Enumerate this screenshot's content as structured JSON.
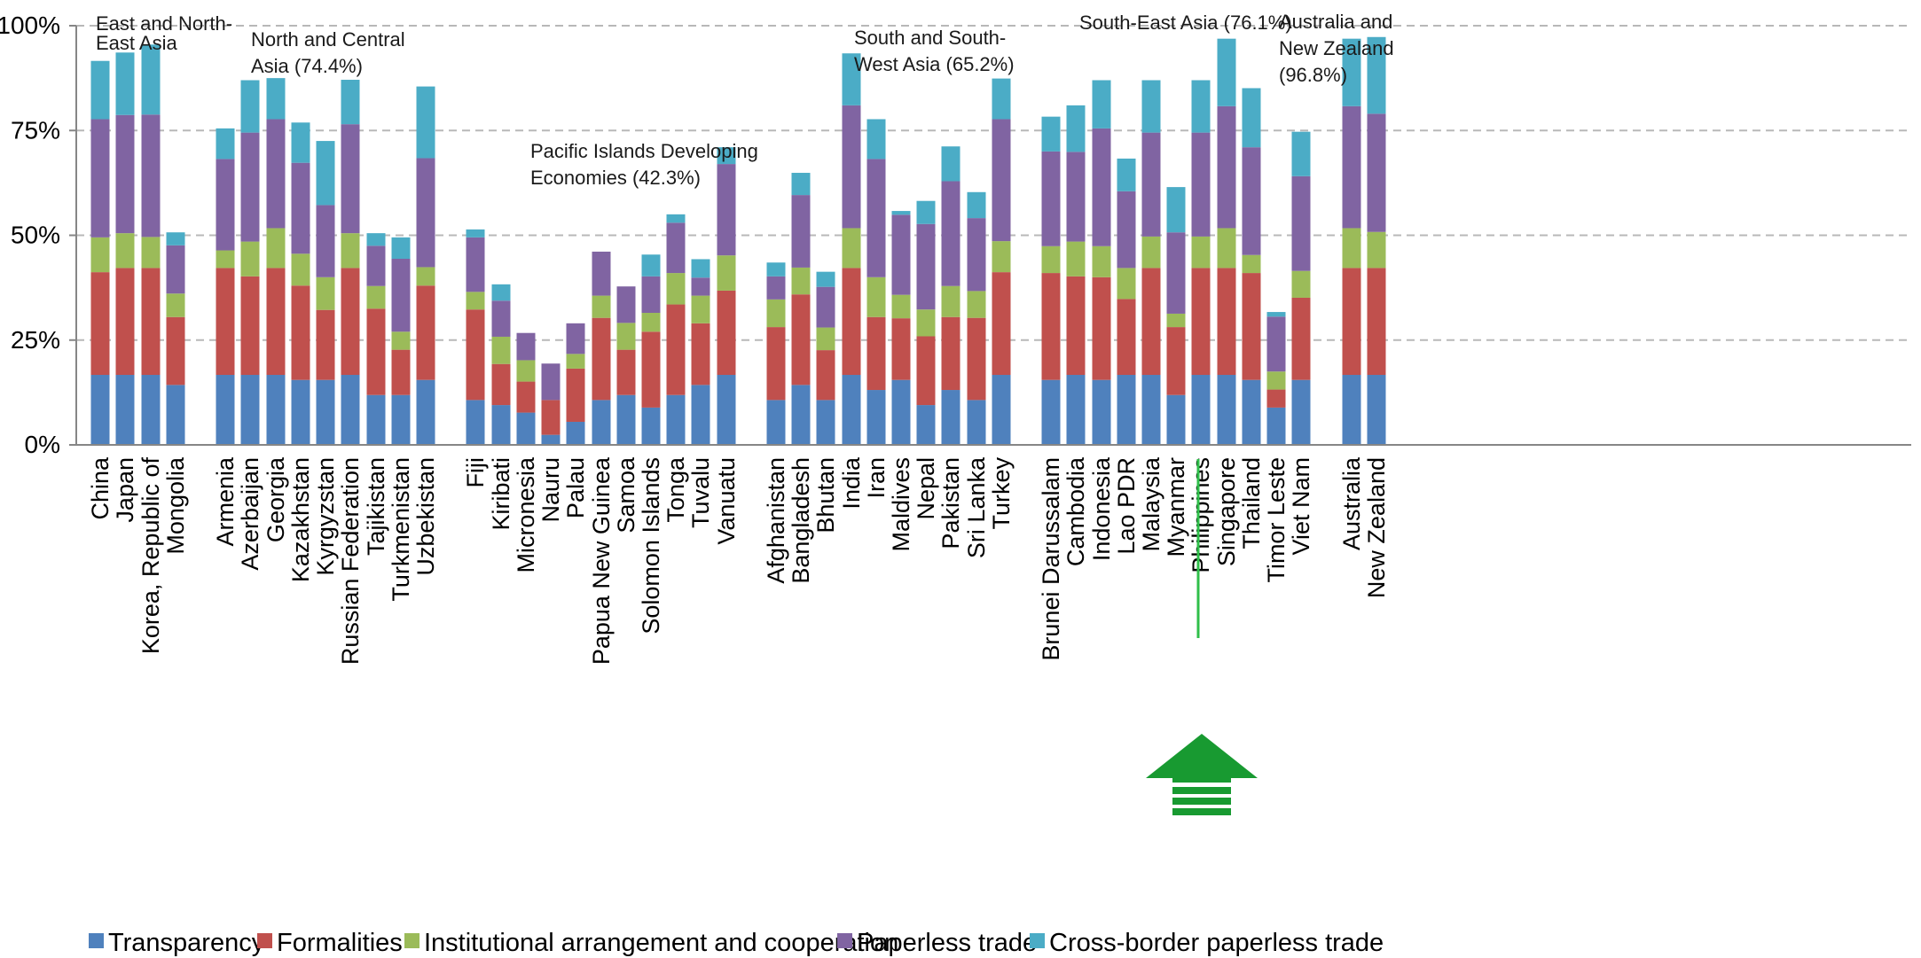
{
  "chart_data": {
    "type": "bar",
    "stacked": true,
    "ylim": [
      0,
      100
    ],
    "y_ticks": [
      "0%",
      "25%",
      "50%",
      "75%",
      "100%"
    ],
    "y_tick_values": [
      0,
      25,
      50,
      75,
      100
    ],
    "grid": "horizontal dashed",
    "legend_position": "bottom",
    "categories": [
      "China",
      "Japan",
      "Korea, Republic of",
      "Mongolia",
      "Armenia",
      "Azerbaijan",
      "Georgia",
      "Kazakhstan",
      "Kyrgyzstan",
      "Russian Federation",
      "Tajikistan",
      "Turkmenistan",
      "Uzbekistan",
      "Fiji",
      "Kiribati",
      "Micronesia",
      "Nauru",
      "Palau",
      "Papua New Guinea",
      "Samoa",
      "Solomon Islands",
      "Tonga",
      "Tuvalu",
      "Vanuatu",
      "Afghanistan",
      "Bangladesh",
      "Bhutan",
      "India",
      "Iran",
      "Maldives",
      "Nepal",
      "Pakistan",
      "Sri Lanka",
      "Turkey",
      "Brunei Darussalam",
      "Cambodia",
      "Indonesia",
      "Lao PDR",
      "Malaysia",
      "Myanmar",
      "Philippines",
      "Singapore",
      "Thailand",
      "Timor Leste",
      "Viet Nam",
      "Australia",
      "New Zealand"
    ],
    "groups": [
      {
        "label": "East and North-East Asia",
        "start": 0,
        "end": 3
      },
      {
        "label": "North and Central Asia (74.4%)",
        "start": 4,
        "end": 12
      },
      {
        "label": "Pacific Islands Developing Economies (42.3%)",
        "start": 13,
        "end": 23
      },
      {
        "label": "South and South-West Asia (65.2%)",
        "start": 24,
        "end": 33
      },
      {
        "label": "South-East Asia (76.1%)",
        "start": 34,
        "end": 44
      },
      {
        "label": "Australia and New Zealand (96.8%)",
        "start": 45,
        "end": 46
      }
    ],
    "series": [
      {
        "name": "Transparency",
        "color": "#4f81bd",
        "values": [
          16.7,
          16.7,
          16.7,
          14.3,
          16.7,
          16.7,
          16.7,
          15.5,
          15.5,
          16.7,
          11.9,
          11.9,
          15.5,
          10.7,
          9.5,
          7.7,
          2.4,
          5.5,
          10.7,
          11.9,
          8.9,
          11.9,
          14.3,
          16.7,
          10.7,
          14.3,
          10.7,
          16.7,
          13.1,
          15.5,
          9.5,
          13.1,
          10.7,
          16.7,
          15.5,
          16.7,
          15.5,
          16.7,
          16.7,
          11.9,
          16.7,
          16.7,
          15.5,
          8.9,
          15.5,
          16.7,
          16.7
        ]
      },
      {
        "name": "Formalities",
        "color": "#c0504d",
        "values": [
          24.5,
          25.5,
          25.5,
          16.2,
          25.5,
          23.5,
          25.5,
          22.5,
          16.7,
          25.5,
          20.6,
          10.8,
          22.5,
          21.6,
          9.8,
          7.4,
          8.3,
          12.7,
          19.6,
          10.8,
          18.1,
          21.6,
          14.7,
          20.1,
          17.4,
          21.6,
          11.9,
          25.5,
          17.4,
          14.7,
          16.4,
          17.4,
          19.6,
          24.5,
          25.5,
          23.5,
          24.5,
          18.1,
          25.5,
          16.2,
          25.5,
          25.5,
          25.5,
          4.3,
          19.6,
          25.5,
          25.5
        ]
      },
      {
        "name": "Institutional arrangement and cooperation",
        "color": "#9bbb59",
        "values": [
          8.3,
          8.3,
          7.4,
          5.6,
          4.2,
          8.3,
          9.5,
          7.6,
          7.8,
          8.3,
          5.4,
          4.3,
          4.4,
          4.2,
          6.5,
          5.1,
          0,
          3.5,
          5.3,
          6.4,
          4.5,
          7.5,
          6.6,
          8.4,
          6.6,
          6.4,
          5.4,
          9.5,
          9.5,
          5.6,
          6.4,
          7.4,
          6.4,
          7.4,
          6.4,
          8.3,
          7.4,
          7.4,
          7.5,
          3.2,
          7.5,
          9.5,
          4.3,
          4.3,
          6.4,
          9.5,
          8.6
        ]
      },
      {
        "name": "Paperless trade",
        "color": "#8064a2",
        "values": [
          28.2,
          28.2,
          29.2,
          11.5,
          21.8,
          26.0,
          26.0,
          21.7,
          17.2,
          26.0,
          9.6,
          17.4,
          26.0,
          13.0,
          8.6,
          6.5,
          8.7,
          7.3,
          10.5,
          8.7,
          8.7,
          12.0,
          4.3,
          21.8,
          5.5,
          17.3,
          9.7,
          29.3,
          28.2,
          19.1,
          20.4,
          25.0,
          17.4,
          29.1,
          22.6,
          21.4,
          28.1,
          18.3,
          24.8,
          19.4,
          24.8,
          29.1,
          25.7,
          13.1,
          22.6,
          29.1,
          28.2
        ]
      },
      {
        "name": "Cross-border paperless trade",
        "color": "#4bacc6",
        "values": [
          13.9,
          14.9,
          16.7,
          3.1,
          7.3,
          12.5,
          9.8,
          9.6,
          15.3,
          10.6,
          3.0,
          5.1,
          17.1,
          1.9,
          3.9,
          0,
          0,
          0,
          0,
          0,
          5.2,
          2.0,
          4.4,
          4.0,
          3.3,
          5.3,
          3.6,
          12.4,
          9.5,
          0.9,
          5.5,
          8.3,
          6.2,
          9.7,
          8.3,
          11.1,
          11.5,
          7.8,
          12.5,
          10.8,
          12.5,
          16.1,
          14.1,
          1.1,
          10.6,
          16.1,
          18.3
        ]
      }
    ]
  },
  "highlight": {
    "category": "Philippines",
    "marker": "green-up-arrow",
    "color": "#189a31"
  }
}
